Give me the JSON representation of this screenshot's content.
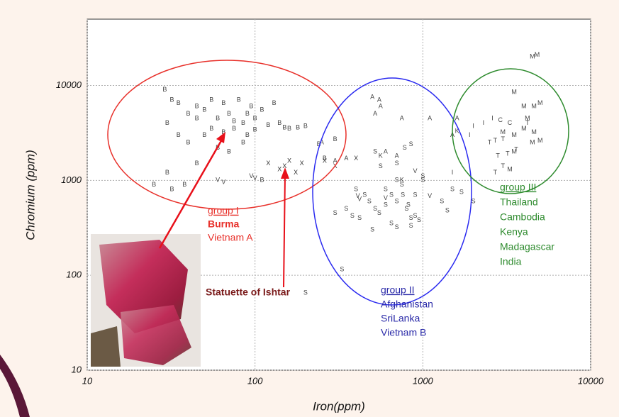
{
  "chart_data": {
    "type": "scatter",
    "xlabel": "Iron(ppm)",
    "ylabel": "Chromium (ppm)",
    "log_x": true,
    "log_y": true,
    "grid": true,
    "xlim": [
      10,
      10000
    ],
    "ylim": [
      10,
      50000
    ],
    "xticks": [
      10,
      100,
      1000,
      10000
    ],
    "yticks": [
      10,
      100,
      1000,
      10000
    ],
    "series": [
      {
        "marker": "B",
        "color": "#444444",
        "x": [
          29,
          32,
          35,
          40,
          45,
          50,
          55,
          60,
          65,
          70,
          75,
          80,
          85,
          90,
          95,
          100,
          110,
          120,
          130,
          140,
          160,
          180,
          200,
          30,
          35,
          40,
          50,
          60,
          70,
          85,
          30,
          32,
          38,
          45,
          110,
          240,
          260,
          300,
          55,
          65,
          75,
          90,
          100,
          150,
          45,
          25
        ],
        "y": [
          9000,
          7000,
          6500,
          5000,
          6000,
          5500,
          7000,
          4500,
          6500,
          5000,
          3500,
          7000,
          4000,
          3000,
          6000,
          4500,
          5500,
          3800,
          6500,
          4000,
          3500,
          3600,
          3700,
          4000,
          3000,
          2500,
          3000,
          2200,
          2000,
          2500,
          1200,
          800,
          900,
          1500,
          1000,
          2400,
          1700,
          2700,
          3500,
          3200,
          4200,
          5000,
          3400,
          3600,
          4500,
          900
        ]
      },
      {
        "marker": "S",
        "color": "#444444",
        "x": [
          520,
          560,
          600,
          650,
          700,
          750,
          800,
          850,
          900,
          1000,
          400,
          450,
          480,
          520,
          550,
          600,
          650,
          700,
          760,
          820,
          900,
          950,
          1000,
          1300,
          1400,
          1500,
          1700,
          2000,
          300,
          350,
          380,
          420,
          700,
          850,
          500,
          200,
          330,
          700,
          780,
          850
        ],
        "y": [
          2000,
          1400,
          800,
          700,
          600,
          900,
          500,
          400,
          700,
          1100,
          800,
          700,
          600,
          500,
          450,
          550,
          350,
          1000,
          700,
          550,
          420,
          380,
          1000,
          600,
          480,
          800,
          750,
          600,
          450,
          500,
          420,
          400,
          320,
          330,
          300,
          65,
          115,
          1500,
          2200,
          2400
        ]
      },
      {
        "marker": "A",
        "color": "#444444",
        "x": [
          500,
          550,
          520,
          560,
          750,
          1100,
          600,
          700,
          250,
          300,
          350,
          1500,
          1600
        ],
        "y": [
          7500,
          7000,
          5000,
          6000,
          4500,
          4500,
          2000,
          1800,
          2500,
          1600,
          1700,
          3000,
          4500
        ]
      },
      {
        "marker": "K",
        "color": "#444444",
        "x": [
          560,
          750,
          1600
        ],
        "y": [
          1800,
          1000,
          3300
        ]
      },
      {
        "marker": "X",
        "color": "#333333",
        "x": [
          120,
          140,
          150,
          160,
          175,
          190,
          260,
          300,
          400
        ],
        "y": [
          1500,
          1300,
          1400,
          1600,
          1200,
          1500,
          1600,
          1400,
          1700
        ]
      },
      {
        "marker": "V",
        "color": "#444444",
        "x": [
          60,
          65,
          95,
          100,
          410,
          420,
          600,
          900,
          1100
        ],
        "y": [
          1000,
          950,
          1100,
          1050,
          680,
          630,
          650,
          1250,
          680
        ]
      },
      {
        "marker": "M",
        "color": "#444444",
        "x": [
          4500,
          4800,
          3500,
          4000,
          4600,
          5000,
          4200,
          3500,
          4000,
          4600,
          3000,
          3500,
          4500,
          5000,
          3300
        ],
        "y": [
          20000,
          21000,
          8500,
          6000,
          6000,
          6500,
          4500,
          3000,
          3500,
          3200,
          3200,
          2000,
          2500,
          2600,
          1300
        ]
      },
      {
        "marker": "T",
        "color": "#444444",
        "x": [
          4200,
          2500,
          2700,
          3000,
          2800,
          3200,
          3600,
          3000,
          2700
        ],
        "y": [
          4000,
          2500,
          2600,
          2700,
          1800,
          1900,
          2100,
          1400,
          1200
        ]
      },
      {
        "marker": "I",
        "color": "#444444",
        "x": [
          2300,
          2000,
          1500,
          2600,
          1900
        ],
        "y": [
          4000,
          3700,
          1200,
          4500,
          3000
        ]
      },
      {
        "marker": "C",
        "color": "#444444",
        "x": [
          2900,
          3300
        ],
        "y": [
          4300,
          4000
        ]
      }
    ],
    "groups": [
      {
        "title": "group I",
        "lines": [
          "Burma",
          "Vietnam A"
        ],
        "color": "#e8302a"
      },
      {
        "title": "group II",
        "lines": [
          "Afghanistan",
          "SriLanka",
          "Vietnam B"
        ],
        "color": "#2a2aa8"
      },
      {
        "title": "group III",
        "lines": [
          "Thailand",
          "Cambodia",
          "Kenya",
          "Madagascar",
          "India"
        ],
        "color": "#2e8b2e"
      }
    ],
    "annotation": {
      "text": "Statuette of Ishtar",
      "color": "#7a1a1a"
    }
  }
}
